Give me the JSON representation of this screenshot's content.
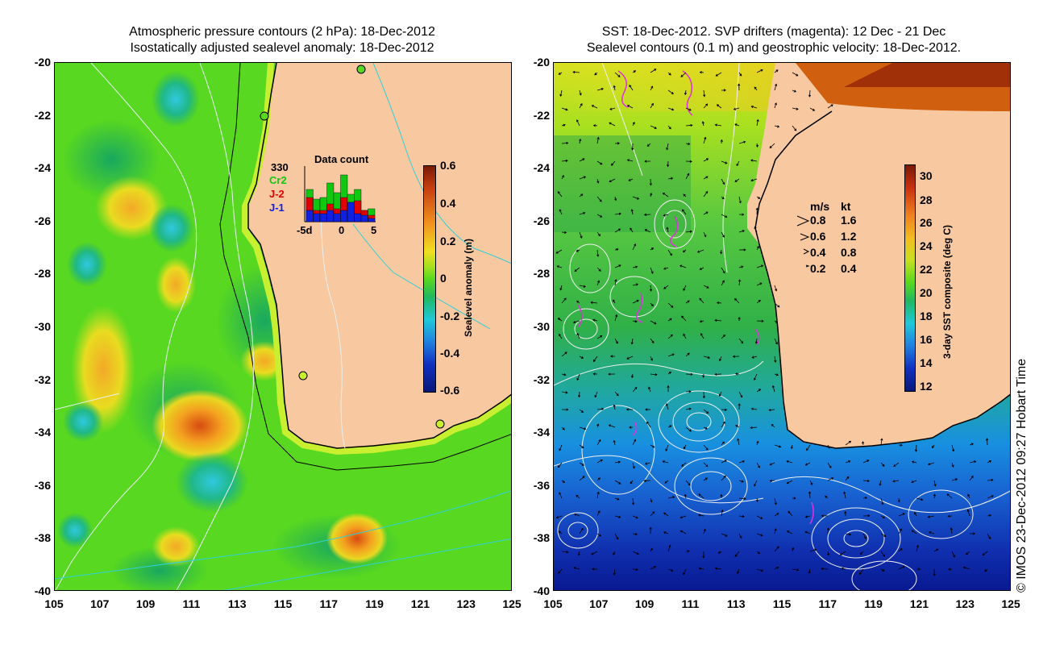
{
  "left_panel": {
    "title_line1": "Atmospheric pressure contours (2 hPa): 18-Dec-2012",
    "title_line2": "Isostatically adjusted sealevel anomaly: 18-Dec-2012",
    "data_count": {
      "title": "Data count",
      "max_label": "330",
      "series": [
        {
          "name": "Cr2",
          "color": "#10c810"
        },
        {
          "name": "J-2",
          "color": "#e00000"
        },
        {
          "name": "J-1",
          "color": "#1020e0"
        }
      ],
      "x_labels": [
        "-5d",
        "0",
        "5"
      ]
    },
    "colorbar": {
      "label": "Sealevel anomaly (m)",
      "ticks": [
        "0.6",
        "0.4",
        "0.2",
        "0",
        "-0.2",
        "-0.4",
        "-0.6"
      ]
    }
  },
  "right_panel": {
    "title_line1": "SST: 18-Dec-2012. SVP drifters (magenta): 12 Dec - 21 Dec",
    "title_line2": "Sealevel contours (0.1 m) and geostrophic velocity: 18-Dec-2012.",
    "velocity_legend": {
      "header_ms": "m/s",
      "header_kt": "kt",
      "rows": [
        {
          "ms": "0.8",
          "kt": "1.6"
        },
        {
          "ms": "0.6",
          "kt": "1.2"
        },
        {
          "ms": "0.4",
          "kt": "0.8"
        },
        {
          "ms": "0.2",
          "kt": "0.4"
        }
      ]
    },
    "colorbar": {
      "label": "3-day SST composite (deg C)",
      "ticks": [
        "30",
        "28",
        "26",
        "24",
        "22",
        "20",
        "18",
        "16",
        "14",
        "12"
      ]
    }
  },
  "axes": {
    "y_ticks": [
      "-20",
      "-22",
      "-24",
      "-26",
      "-28",
      "-30",
      "-32",
      "-34",
      "-36",
      "-38",
      "-40"
    ],
    "x_ticks": [
      "105",
      "107",
      "109",
      "111",
      "113",
      "115",
      "117",
      "119",
      "121",
      "123",
      "125"
    ]
  },
  "credit": "© IMOS 23-Dec-2012 09:27 Hobart Time"
}
